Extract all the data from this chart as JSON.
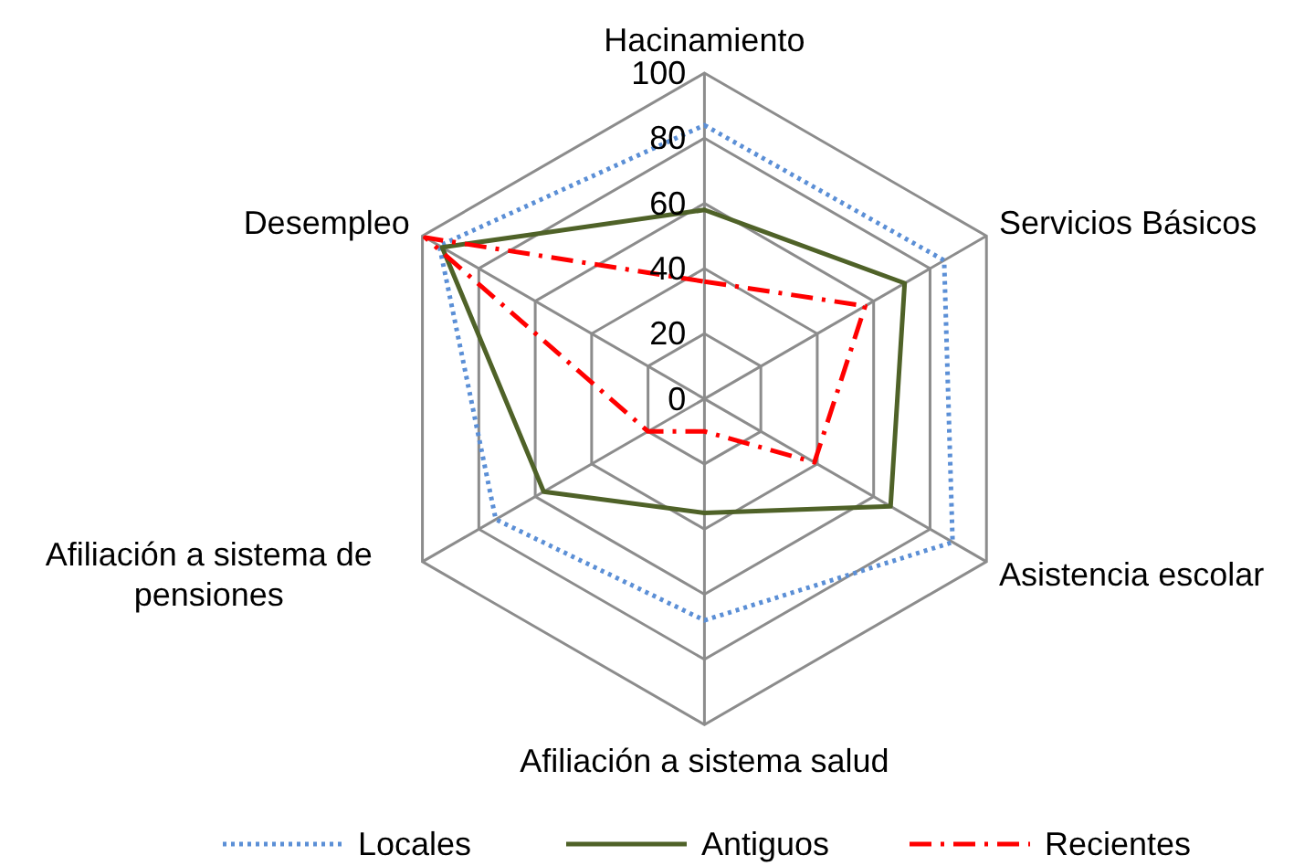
{
  "chart_data": {
    "type": "radar",
    "categories": [
      "Hacinamiento",
      "Servicios Básicos",
      "Asistencia escolar",
      "Afiliación a sistema salud",
      "Afiliación a sistema de pensiones",
      "Desempleo"
    ],
    "ylim": [
      0,
      100
    ],
    "yticks": [
      0,
      20,
      40,
      60,
      80,
      100
    ],
    "legend": "bottom",
    "grid": true,
    "series": [
      {
        "name": "Locales",
        "color": "#5b8fd6",
        "line_style": "dotted",
        "values": [
          84,
          85,
          88,
          68,
          74,
          94
        ]
      },
      {
        "name": "Antiguos",
        "color": "#4f6228",
        "line_style": "solid",
        "values": [
          58,
          71,
          66,
          35,
          57,
          93
        ]
      },
      {
        "name": "Recientes",
        "color": "#ff0000",
        "line_style": "dashdot",
        "values": [
          36,
          57,
          39,
          10,
          20,
          99
        ]
      }
    ]
  }
}
